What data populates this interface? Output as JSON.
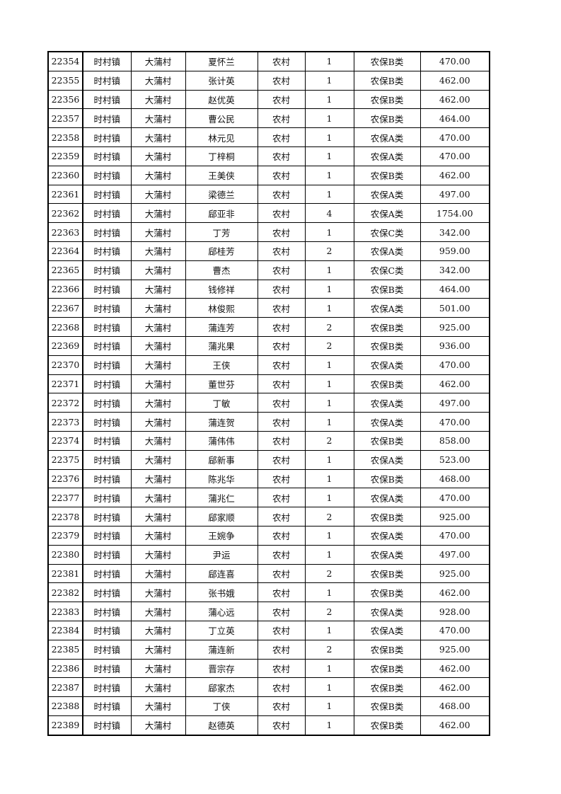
{
  "table": {
    "rows": [
      [
        "22354",
        "时村镇",
        "大蒲村",
        "夏怀兰",
        "农村",
        "1",
        "农保B类",
        "470.00"
      ],
      [
        "22355",
        "时村镇",
        "大蒲村",
        "张计英",
        "农村",
        "1",
        "农保B类",
        "462.00"
      ],
      [
        "22356",
        "时村镇",
        "大蒲村",
        "赵优英",
        "农村",
        "1",
        "农保B类",
        "462.00"
      ],
      [
        "22357",
        "时村镇",
        "大蒲村",
        "曹公民",
        "农村",
        "1",
        "农保B类",
        "464.00"
      ],
      [
        "22358",
        "时村镇",
        "大蒲村",
        "林元见",
        "农村",
        "1",
        "农保A类",
        "470.00"
      ],
      [
        "22359",
        "时村镇",
        "大蒲村",
        "丁梓桐",
        "农村",
        "1",
        "农保A类",
        "470.00"
      ],
      [
        "22360",
        "时村镇",
        "大蒲村",
        "王美侠",
        "农村",
        "1",
        "农保B类",
        "462.00"
      ],
      [
        "22361",
        "时村镇",
        "大蒲村",
        "梁德兰",
        "农村",
        "1",
        "农保A类",
        "497.00"
      ],
      [
        "22362",
        "时村镇",
        "大蒲村",
        "郈亚非",
        "农村",
        "4",
        "农保A类",
        "1754.00"
      ],
      [
        "22363",
        "时村镇",
        "大蒲村",
        "丁芳",
        "农村",
        "1",
        "农保C类",
        "342.00"
      ],
      [
        "22364",
        "时村镇",
        "大蒲村",
        "郈桂芳",
        "农村",
        "2",
        "农保A类",
        "959.00"
      ],
      [
        "22365",
        "时村镇",
        "大蒲村",
        "曹杰",
        "农村",
        "1",
        "农保C类",
        "342.00"
      ],
      [
        "22366",
        "时村镇",
        "大蒲村",
        "钱修祥",
        "农村",
        "1",
        "农保B类",
        "464.00"
      ],
      [
        "22367",
        "时村镇",
        "大蒲村",
        "林俊熙",
        "农村",
        "1",
        "农保A类",
        "501.00"
      ],
      [
        "22368",
        "时村镇",
        "大蒲村",
        "蒲连芳",
        "农村",
        "2",
        "农保B类",
        "925.00"
      ],
      [
        "22369",
        "时村镇",
        "大蒲村",
        "蒲兆果",
        "农村",
        "2",
        "农保B类",
        "936.00"
      ],
      [
        "22370",
        "时村镇",
        "大蒲村",
        "王侠",
        "农村",
        "1",
        "农保A类",
        "470.00"
      ],
      [
        "22371",
        "时村镇",
        "大蒲村",
        "董世芬",
        "农村",
        "1",
        "农保B类",
        "462.00"
      ],
      [
        "22372",
        "时村镇",
        "大蒲村",
        "丁敏",
        "农村",
        "1",
        "农保A类",
        "497.00"
      ],
      [
        "22373",
        "时村镇",
        "大蒲村",
        "蒲连贺",
        "农村",
        "1",
        "农保A类",
        "470.00"
      ],
      [
        "22374",
        "时村镇",
        "大蒲村",
        "蒲伟伟",
        "农村",
        "2",
        "农保B类",
        "858.00"
      ],
      [
        "22375",
        "时村镇",
        "大蒲村",
        "郈新事",
        "农村",
        "1",
        "农保A类",
        "523.00"
      ],
      [
        "22376",
        "时村镇",
        "大蒲村",
        "陈兆华",
        "农村",
        "1",
        "农保B类",
        "468.00"
      ],
      [
        "22377",
        "时村镇",
        "大蒲村",
        "蒲兆仁",
        "农村",
        "1",
        "农保A类",
        "470.00"
      ],
      [
        "22378",
        "时村镇",
        "大蒲村",
        "郈家顺",
        "农村",
        "2",
        "农保B类",
        "925.00"
      ],
      [
        "22379",
        "时村镇",
        "大蒲村",
        "王婉争",
        "农村",
        "1",
        "农保A类",
        "470.00"
      ],
      [
        "22380",
        "时村镇",
        "大蒲村",
        "尹运",
        "农村",
        "1",
        "农保A类",
        "497.00"
      ],
      [
        "22381",
        "时村镇",
        "大蒲村",
        "郈连喜",
        "农村",
        "2",
        "农保B类",
        "925.00"
      ],
      [
        "22382",
        "时村镇",
        "大蒲村",
        "张书娥",
        "农村",
        "1",
        "农保B类",
        "462.00"
      ],
      [
        "22383",
        "时村镇",
        "大蒲村",
        "蒲心远",
        "农村",
        "2",
        "农保A类",
        "928.00"
      ],
      [
        "22384",
        "时村镇",
        "大蒲村",
        "丁立英",
        "农村",
        "1",
        "农保A类",
        "470.00"
      ],
      [
        "22385",
        "时村镇",
        "大蒲村",
        "蒲连新",
        "农村",
        "2",
        "农保B类",
        "925.00"
      ],
      [
        "22386",
        "时村镇",
        "大蒲村",
        "晋宗存",
        "农村",
        "1",
        "农保B类",
        "462.00"
      ],
      [
        "22387",
        "时村镇",
        "大蒲村",
        "郈家杰",
        "农村",
        "1",
        "农保B类",
        "462.00"
      ],
      [
        "22388",
        "时村镇",
        "大蒲村",
        "丁侠",
        "农村",
        "1",
        "农保B类",
        "468.00"
      ],
      [
        "22389",
        "时村镇",
        "大蒲村",
        "赵德英",
        "农村",
        "1",
        "农保B类",
        "462.00"
      ]
    ]
  }
}
